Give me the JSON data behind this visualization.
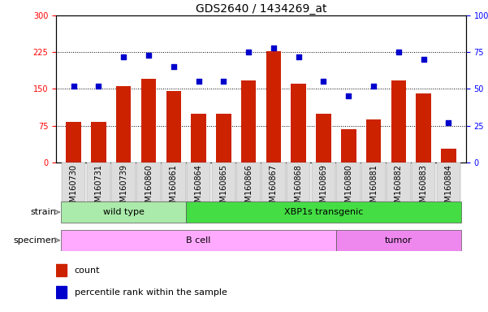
{
  "title": "GDS2640 / 1434269_at",
  "samples": [
    "GSM160730",
    "GSM160731",
    "GSM160739",
    "GSM160860",
    "GSM160861",
    "GSM160864",
    "GSM160865",
    "GSM160866",
    "GSM160867",
    "GSM160868",
    "GSM160869",
    "GSM160880",
    "GSM160881",
    "GSM160882",
    "GSM160883",
    "GSM160884"
  ],
  "counts": [
    82,
    82,
    155,
    170,
    145,
    100,
    100,
    168,
    228,
    160,
    100,
    68,
    88,
    168,
    140,
    28
  ],
  "percentiles": [
    52,
    52,
    72,
    73,
    65,
    55,
    55,
    75,
    78,
    72,
    55,
    45,
    52,
    75,
    70,
    27
  ],
  "strain_groups": [
    {
      "label": "wild type",
      "start": 0,
      "end": 5,
      "color": "#AAEAAA"
    },
    {
      "label": "XBP1s transgenic",
      "start": 5,
      "end": 16,
      "color": "#44DD44"
    }
  ],
  "specimen_groups": [
    {
      "label": "B cell",
      "start": 0,
      "end": 11,
      "color": "#FFAAFF"
    },
    {
      "label": "tumor",
      "start": 11,
      "end": 16,
      "color": "#EE88EE"
    }
  ],
  "left_ylim": [
    0,
    300
  ],
  "right_ylim": [
    0,
    100
  ],
  "left_yticks": [
    0,
    75,
    150,
    225,
    300
  ],
  "right_yticks": [
    0,
    25,
    50,
    75,
    100
  ],
  "right_yticklabels": [
    "0",
    "25",
    "50",
    "75",
    "100%"
  ],
  "hlines": [
    75,
    150,
    225
  ],
  "bar_color": "#CC2200",
  "dot_color": "#0000CC",
  "bar_width": 0.6,
  "title_fontsize": 10,
  "tick_fontsize": 7,
  "label_fontsize": 8,
  "legend_fontsize": 8,
  "xtick_bg": "#DDDDDD"
}
